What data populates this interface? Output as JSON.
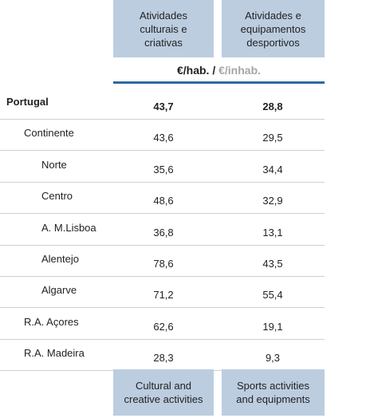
{
  "header": {
    "columns": [
      "Atividades culturais e criativas",
      "Atividades e equipamentos desportivos"
    ]
  },
  "unit": {
    "pt": "€/hab. /",
    "en": "€/inhab."
  },
  "rows": [
    {
      "label": "Portugal",
      "values": [
        "43,7",
        "28,8"
      ]
    },
    {
      "label": "Continente",
      "values": [
        "43,6",
        "29,5"
      ]
    },
    {
      "label": "Norte",
      "values": [
        "35,6",
        "34,4"
      ]
    },
    {
      "label": "Centro",
      "values": [
        "48,6",
        "32,9"
      ]
    },
    {
      "label": "A. M.Lisboa",
      "values": [
        "36,8",
        "13,1"
      ]
    },
    {
      "label": "Alentejo",
      "values": [
        "78,6",
        "43,5"
      ]
    },
    {
      "label": "Algarve",
      "values": [
        "71,2",
        "55,4"
      ]
    },
    {
      "label": "R.A. Açores",
      "values": [
        "62,6",
        "19,1"
      ]
    },
    {
      "label": "R.A. Madeira",
      "values": [
        "28,3",
        "9,3"
      ]
    }
  ],
  "footer": {
    "columns": [
      "Cultural and creative activities",
      "Sports activities and equipments"
    ]
  }
}
